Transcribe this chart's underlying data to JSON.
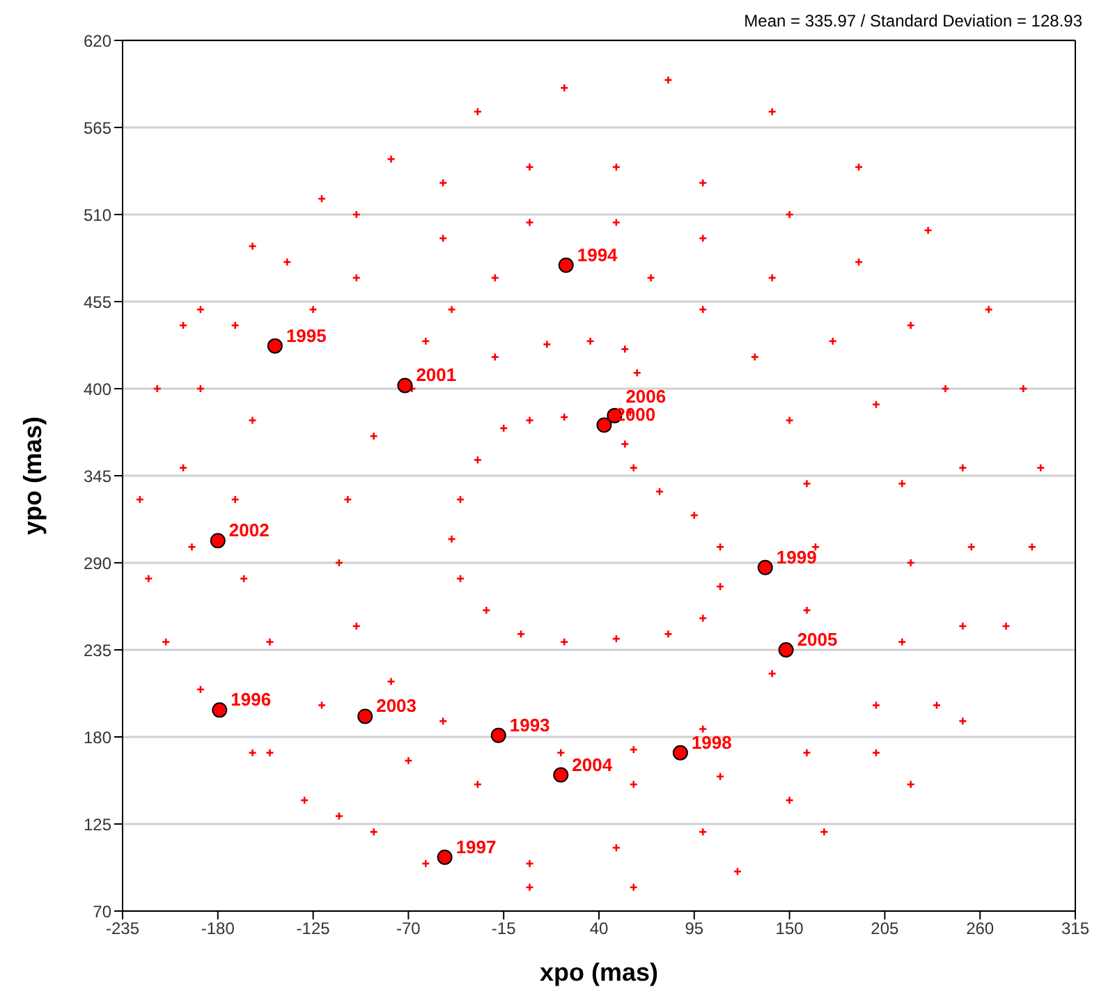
{
  "chart_data": {
    "type": "scatter",
    "xlabel": "xpo (mas)",
    "ylabel": "ypo (mas)",
    "annotations": [
      "Mean = 335.97 / Standard Deviation = 128.93",
      {
        "text": "1993",
        "x": -18,
        "y": 181
      },
      {
        "text": "1994",
        "x": 21,
        "y": 478
      },
      {
        "text": "1995",
        "x": -147,
        "y": 427
      },
      {
        "text": "1996",
        "x": -179,
        "y": 197
      },
      {
        "text": "1997",
        "x": -49,
        "y": 104
      },
      {
        "text": "1998",
        "x": 87,
        "y": 170
      },
      {
        "text": "1999",
        "x": 136,
        "y": 287
      },
      {
        "text": "2000",
        "x": 43,
        "y": 377
      },
      {
        "text": "2001",
        "x": -72,
        "y": 402
      },
      {
        "text": "2002",
        "x": -180,
        "y": 304
      },
      {
        "text": "2003",
        "x": -95,
        "y": 193
      },
      {
        "text": "2004",
        "x": 18,
        "y": 156
      },
      {
        "text": "2005",
        "x": 148,
        "y": 235
      },
      {
        "text": "2006",
        "x": 49,
        "y": 383
      }
    ],
    "xlim": [
      -235,
      315
    ],
    "xticks": [
      -235,
      -180,
      -125,
      -70,
      -15,
      40,
      95,
      150,
      205,
      260,
      315
    ],
    "ylim": [
      70,
      620
    ],
    "yticks": [
      70,
      125,
      180,
      235,
      290,
      345,
      400,
      455,
      510,
      565,
      620
    ],
    "grid": "y",
    "series": [
      {
        "color": "#ff0000",
        "marker": "cross",
        "x": [
          20,
          0,
          -15,
          -30,
          -40,
          -45,
          -40,
          -25,
          -5,
          20,
          50,
          80,
          100,
          110,
          110,
          95,
          75,
          60,
          55,
          58,
          62,
          55,
          35,
          10,
          -20,
          -68,
          -90,
          -105,
          -110,
          -100,
          -80,
          -50,
          18,
          60,
          100,
          140,
          160,
          165,
          160,
          150,
          130,
          100,
          70,
          -20,
          -45,
          -60,
          -160,
          -170,
          -165,
          -150,
          -120,
          -70,
          -30,
          60,
          110,
          160,
          200,
          215,
          220,
          215,
          200,
          175,
          140,
          100,
          50,
          0,
          -50,
          -100,
          -125,
          -160,
          -130,
          -90,
          0,
          50,
          100,
          150,
          200,
          235,
          250,
          255,
          250,
          240,
          220,
          190,
          150,
          100,
          50,
          0,
          -50,
          -100,
          -140,
          -170,
          -190,
          -200,
          -195,
          -225,
          -220,
          -210,
          -190,
          -150,
          -110,
          -60,
          0,
          60,
          120,
          170,
          220,
          250,
          275,
          290,
          295,
          285,
          265,
          230,
          190,
          140,
          80,
          20,
          -30,
          -80,
          -120,
          -160,
          -190,
          -215,
          -200
        ],
        "values": [
          382,
          380,
          375,
          355,
          330,
          305,
          280,
          260,
          245,
          240,
          242,
          245,
          255,
          275,
          300,
          320,
          335,
          350,
          365,
          385,
          410,
          425,
          430,
          428,
          420,
          400,
          370,
          330,
          290,
          250,
          215,
          190,
          170,
          172,
          185,
          220,
          260,
          300,
          340,
          380,
          420,
          450,
          470,
          470,
          450,
          430,
          380,
          330,
          280,
          240,
          200,
          165,
          150,
          150,
          155,
          170,
          200,
          240,
          290,
          340,
          390,
          430,
          470,
          495,
          505,
          505,
          495,
          470,
          450,
          170,
          140,
          120,
          100,
          110,
          120,
          140,
          170,
          200,
          250,
          300,
          350,
          400,
          440,
          480,
          510,
          530,
          540,
          540,
          530,
          510,
          480,
          440,
          400,
          350,
          300,
          330,
          280,
          240,
          210,
          170,
          130,
          100,
          85,
          85,
          95,
          120,
          150,
          190,
          250,
          300,
          350,
          400,
          450,
          500,
          540,
          575,
          595,
          590,
          575,
          545,
          520,
          490,
          450,
          400,
          440
        ]
      },
      {
        "color": "#ff0000",
        "marker": "circle",
        "x": [
          -18,
          21,
          -147,
          -179,
          -49,
          87,
          136,
          43,
          -72,
          -180,
          -95,
          18,
          148,
          49
        ],
        "values": [
          181,
          478,
          427,
          197,
          104,
          170,
          287,
          377,
          402,
          304,
          193,
          156,
          235,
          383
        ]
      }
    ]
  }
}
